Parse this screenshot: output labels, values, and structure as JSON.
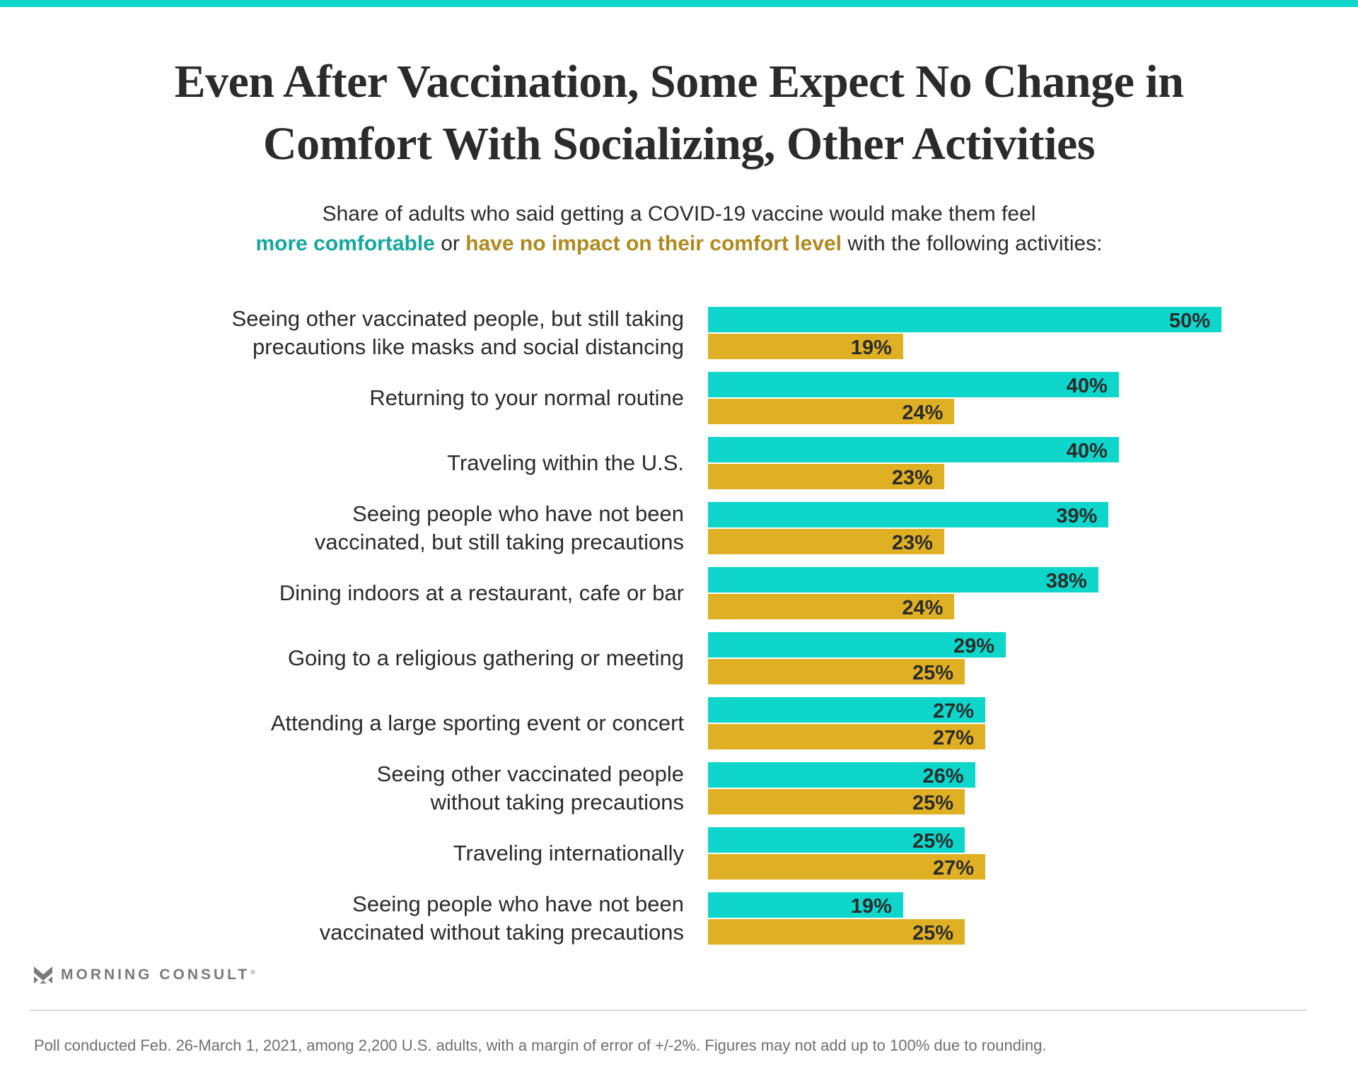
{
  "header": {
    "title_line1": "Even After Vaccination, Some Expect No Change in",
    "title_line2": "Comfort With Socializing, Other Activities",
    "subtitle_line1": "Share of adults who said getting a COVID-19 vaccine would make them feel",
    "subtitle_teal": "more comfortable",
    "subtitle_or": " or ",
    "subtitle_gold": "have no impact on their comfort level",
    "subtitle_rest": " with the following activities:"
  },
  "colors": {
    "accent_bar": "#0fd6cb",
    "more_comfortable": "#0fd6cb",
    "no_impact": "#e0b024",
    "more_comfortable_text": "#14a89d",
    "no_impact_text": "#b08a1e"
  },
  "chart_data": {
    "type": "bar",
    "orientation": "horizontal",
    "title": "Even After Vaccination, Some Expect No Change in Comfort With Socializing, Other Activities",
    "subtitle": "Share of adults who said getting a COVID-19 vaccine would make them feel more comfortable or have no impact on their comfort level with the following activities:",
    "xlabel": "",
    "ylabel": "",
    "xlim": [
      0,
      50
    ],
    "grid": false,
    "value_format": "percent",
    "categories": [
      [
        "Seeing other vaccinated people, but still taking",
        "precautions like masks and social distancing"
      ],
      [
        "Returning to your normal routine"
      ],
      [
        "Traveling within the U.S."
      ],
      [
        "Seeing people who have not been",
        "vaccinated, but still taking precautions"
      ],
      [
        "Dining indoors at a restaurant, cafe or bar"
      ],
      [
        "Going to a religious gathering or meeting"
      ],
      [
        "Attending a large sporting event or concert"
      ],
      [
        "Seeing other vaccinated people",
        "without taking precautions"
      ],
      [
        "Traveling internationally"
      ],
      [
        "Seeing people who have not been",
        "vaccinated without taking precautions"
      ]
    ],
    "series": [
      {
        "name": "More comfortable",
        "color": "#0fd6cb",
        "values": [
          50,
          40,
          40,
          39,
          38,
          29,
          27,
          26,
          25,
          19
        ]
      },
      {
        "name": "Have no impact on their comfort level",
        "color": "#e0b024",
        "values": [
          19,
          24,
          23,
          23,
          24,
          25,
          27,
          25,
          27,
          25
        ]
      }
    ]
  },
  "branding": {
    "logo_text": "MORNING CONSULT",
    "registered_mark": "®"
  },
  "footnote": "Poll conducted Feb. 26-March 1, 2021, among 2,200 U.S. adults, with a margin of error of +/-2%. Figures may not add up to 100% due to rounding."
}
